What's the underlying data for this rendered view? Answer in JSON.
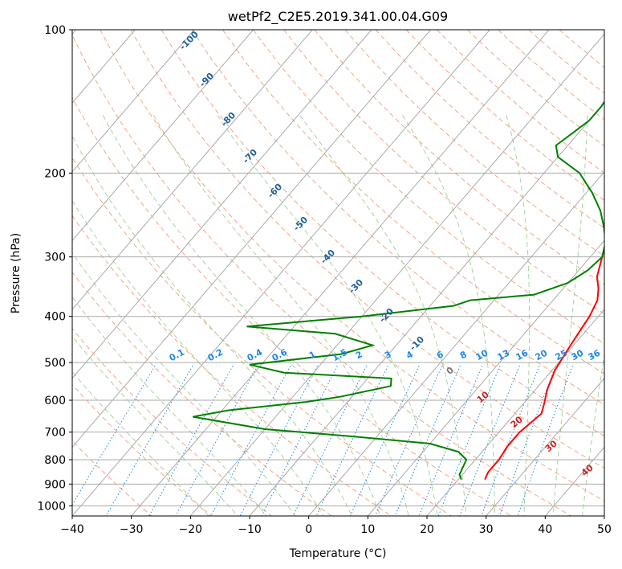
{
  "chart_data": {
    "type": "line",
    "title": "wetPf2_C2E5.2019.341.00.04.G09",
    "xlabel": "Temperature (°C)",
    "ylabel": "Pressure (hPa)",
    "xlim": [
      -40,
      50
    ],
    "ylim": [
      1050,
      100
    ],
    "y_scale": "log",
    "x_ticks": [
      -40,
      -30,
      -20,
      -10,
      0,
      10,
      20,
      30,
      40,
      50
    ],
    "y_ticks": [
      100,
      200,
      300,
      400,
      500,
      600,
      700,
      800,
      900,
      1000
    ],
    "grid": true,
    "skew": true,
    "series": [
      {
        "color": "#ff0000",
        "points": [
          [
            24.5,
            880
          ],
          [
            24,
            850
          ],
          [
            24,
            800
          ],
          [
            23.5,
            750
          ],
          [
            23.5,
            700
          ],
          [
            24,
            670
          ],
          [
            24.5,
            640
          ],
          [
            23.5,
            610
          ],
          [
            22,
            570
          ],
          [
            20.5,
            520
          ],
          [
            20,
            490
          ],
          [
            19.5,
            460
          ],
          [
            19,
            430
          ],
          [
            18.5,
            400
          ],
          [
            17.5,
            370
          ],
          [
            16,
            350
          ],
          [
            14,
            330
          ],
          [
            12,
            300
          ],
          [
            10.5,
            280
          ],
          [
            8.5,
            260
          ],
          [
            6.5,
            240
          ],
          [
            4,
            220
          ],
          [
            2.5,
            200
          ],
          [
            1,
            180
          ],
          [
            -1,
            160
          ],
          [
            -3,
            145
          ],
          [
            -4.5,
            130
          ],
          [
            -5,
            118
          ],
          [
            -5.5,
            110
          ],
          [
            -6,
            104
          ],
          [
            -6,
            100
          ]
        ]
      },
      {
        "color": "#008000",
        "points": [
          [
            20.5,
            880
          ],
          [
            19.5,
            860
          ],
          [
            19,
            830
          ],
          [
            18.5,
            800
          ],
          [
            16,
            770
          ],
          [
            10,
            740
          ],
          [
            -4,
            715
          ],
          [
            -20,
            690
          ],
          [
            -34,
            650
          ],
          [
            -29,
            630
          ],
          [
            -17,
            605
          ],
          [
            -12,
            590
          ],
          [
            -5,
            560
          ],
          [
            -6,
            540
          ],
          [
            -25,
            525
          ],
          [
            -32,
            505
          ],
          [
            -18,
            480
          ],
          [
            -14,
            460
          ],
          [
            -22,
            435
          ],
          [
            -38,
            420
          ],
          [
            -20,
            400
          ],
          [
            -6,
            380
          ],
          [
            -4,
            370
          ],
          [
            6,
            360
          ],
          [
            10,
            340
          ],
          [
            11.5,
            320
          ],
          [
            12,
            300
          ],
          [
            10.5,
            280
          ],
          [
            8,
            260
          ],
          [
            5,
            240
          ],
          [
            1,
            220
          ],
          [
            -4,
            200
          ],
          [
            -10,
            185
          ],
          [
            -12,
            175
          ],
          [
            -11,
            165
          ],
          [
            -10,
            155
          ],
          [
            -10,
            145
          ],
          [
            -10.5,
            135
          ],
          [
            -11,
            125
          ],
          [
            -11,
            115
          ],
          [
            -10.5,
            108
          ],
          [
            -9.5,
            100
          ]
        ]
      }
    ],
    "dry_adiabat_labels": [
      "-100",
      "-90",
      "-80",
      "-70",
      "-60",
      "-50",
      "-40",
      "-30",
      "-20",
      "-10"
    ],
    "moist_adiabat_labels": [
      "0",
      "10",
      "20",
      "30",
      "40"
    ],
    "mixing_ratio_labels": [
      "0.1",
      "0.2",
      "0.4",
      "0.6",
      "1",
      "1.5",
      "2",
      "3",
      "4",
      "6",
      "8",
      "10",
      "13",
      "16",
      "20",
      "25",
      "30",
      "36"
    ]
  }
}
